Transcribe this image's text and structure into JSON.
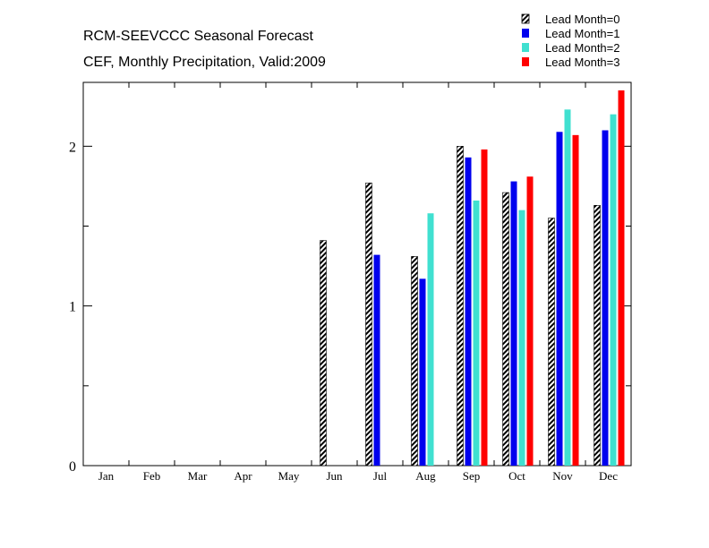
{
  "chart_data": {
    "type": "bar",
    "title": "RCM-SEEVCCC Seasonal Forecast",
    "subtitle": "CEF, Monthly Precipitation, Valid:2009",
    "categories": [
      "Jan",
      "Feb",
      "Mar",
      "Apr",
      "May",
      "Jun",
      "Jul",
      "Aug",
      "Sep",
      "Oct",
      "Nov",
      "Dec"
    ],
    "ylim": [
      0,
      2.4
    ],
    "yticks": [
      0,
      1,
      2
    ],
    "ytick_labels": [
      "0",
      "1",
      "2"
    ],
    "grid": false,
    "legend_position": "top-right",
    "series": [
      {
        "name": "Lead Month=0",
        "color": "#000000",
        "pattern": "hatched",
        "values": [
          null,
          null,
          null,
          null,
          null,
          1.41,
          1.77,
          1.31,
          2.0,
          1.71,
          1.55,
          1.63
        ]
      },
      {
        "name": "Lead Month=1",
        "color": "#0000ee",
        "values": [
          null,
          null,
          null,
          null,
          null,
          null,
          1.32,
          1.17,
          1.93,
          1.78,
          2.09,
          2.1
        ]
      },
      {
        "name": "Lead Month=2",
        "color": "#40e0d0",
        "values": [
          null,
          null,
          null,
          null,
          null,
          null,
          null,
          1.58,
          1.66,
          1.6,
          2.23,
          2.2
        ]
      },
      {
        "name": "Lead Month=3",
        "color": "#ff0000",
        "values": [
          null,
          null,
          null,
          null,
          null,
          null,
          null,
          null,
          1.98,
          1.81,
          2.07,
          2.35
        ]
      }
    ]
  }
}
